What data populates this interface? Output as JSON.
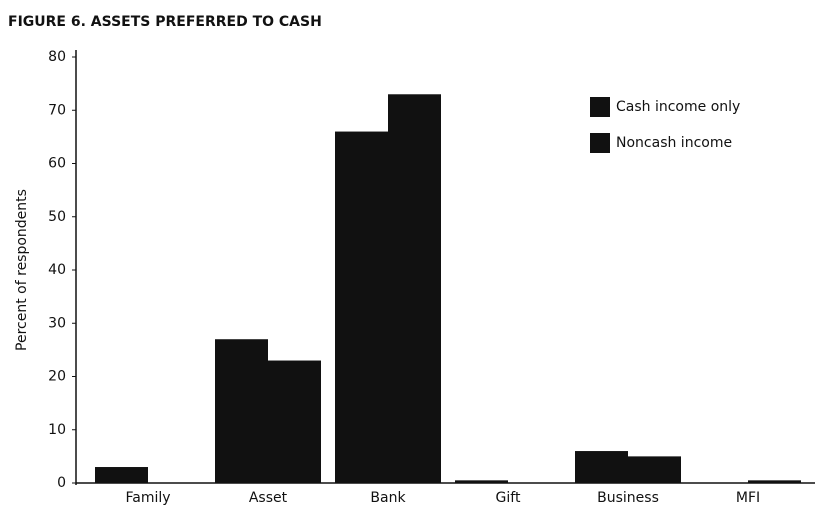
{
  "chart_data": {
    "type": "bar",
    "title": "FIGURE 6. ASSETS PREFERRED TO CASH",
    "y_label": "Percent of respondents",
    "categories": [
      "Family",
      "Asset",
      "Bank",
      "Gift",
      "Business",
      "MFI"
    ],
    "series": [
      {
        "name": "Cash income only",
        "color": "#111111",
        "values": [
          3,
          27,
          66,
          0.5,
          6,
          0
        ]
      },
      {
        "name": "Noncash income",
        "color": "#111111",
        "values": [
          0,
          23,
          73,
          0,
          5,
          0.5
        ]
      }
    ],
    "ylim": [
      0,
      80
    ],
    "yticks": [
      0,
      10,
      20,
      30,
      40,
      50,
      60,
      70,
      80
    ],
    "legend": "upper right"
  }
}
